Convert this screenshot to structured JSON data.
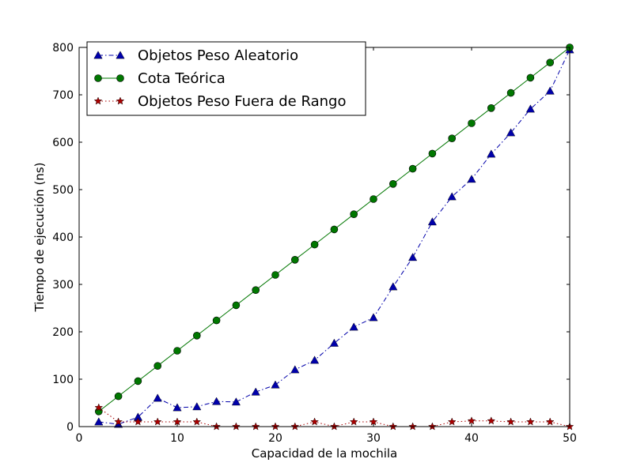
{
  "chart_data": {
    "type": "line",
    "xlabel": "Capacidad de la mochila",
    "ylabel": "Tiempo de ejecución (ns)",
    "xlim": [
      0,
      50
    ],
    "ylim": [
      0,
      800
    ],
    "xticks": [
      0,
      10,
      20,
      30,
      40,
      50
    ],
    "yticks": [
      0,
      100,
      200,
      300,
      400,
      500,
      600,
      700,
      800
    ],
    "grid": false,
    "legend_position": "top-left",
    "x": [
      2,
      4,
      6,
      8,
      10,
      12,
      14,
      16,
      18,
      20,
      22,
      24,
      26,
      28,
      30,
      32,
      34,
      36,
      38,
      40,
      42,
      44,
      46,
      48,
      50
    ],
    "series": [
      {
        "name": "Objetos Peso Aleatorio",
        "color": "#0000aa",
        "marker": "triangle",
        "line_style": "dash-dot",
        "values": [
          10,
          5,
          20,
          60,
          40,
          42,
          53,
          52,
          73,
          88,
          120,
          140,
          176,
          210,
          230,
          295,
          357,
          432,
          485,
          522,
          575,
          620,
          670,
          708,
          795
        ]
      },
      {
        "name": "Cota Teórica",
        "color": "#007700",
        "marker": "circle",
        "line_style": "solid",
        "values": [
          32,
          64,
          96,
          128,
          160,
          192,
          224,
          256,
          288,
          320,
          352,
          384,
          416,
          448,
          480,
          512,
          544,
          576,
          608,
          640,
          672,
          704,
          736,
          768,
          800
        ]
      },
      {
        "name": "Objetos Peso Fuera de Rango",
        "color": "#aa0000",
        "marker": "star",
        "line_style": "dotted",
        "values": [
          40,
          10,
          10,
          10,
          10,
          10,
          0,
          0,
          0,
          0,
          0,
          10,
          0,
          10,
          10,
          0,
          0,
          0,
          10,
          12,
          12,
          10,
          10,
          10,
          0
        ]
      }
    ]
  }
}
